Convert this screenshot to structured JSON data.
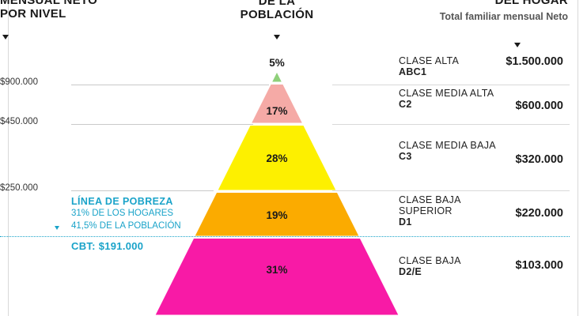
{
  "header": {
    "left_line1": "MENSUAL NETO",
    "left_line2": "POR NIVEL",
    "middle_line1": "DE LA",
    "middle_line2": "POBLACIÓN",
    "right_title": "DEL HOGAR",
    "right_subtitle": "Total familiar mensual Neto"
  },
  "poverty": {
    "title": "LÍNEA DE POBREZA",
    "households": "31% DE LOS HOGARES",
    "population": "41,5% DE LA POBLACIÓN",
    "cbt": "CBT: $191.000",
    "line_color": "#1aa3c9"
  },
  "chart_data": {
    "type": "pyramid",
    "y_tick_labels": [
      "$900.000",
      "$450.000",
      "$250.000"
    ],
    "segments": [
      {
        "pct_label": "5%",
        "value": 5,
        "class_name": "CLASE ALTA",
        "class_code": "ABC1",
        "income": "$1.500.000",
        "color": "#8fd07a"
      },
      {
        "pct_label": "17%",
        "value": 17,
        "class_name": "CLASE MEDIA ALTA",
        "class_code": "C2",
        "income": "$600.000",
        "color": "#f5aaa6"
      },
      {
        "pct_label": "28%",
        "value": 28,
        "class_name": "CLASE MEDIA BAJA",
        "class_code": "C3",
        "income": "$320.000",
        "color": "#fdf000"
      },
      {
        "pct_label": "19%",
        "value": 19,
        "class_name": "CLASE BAJA SUPERIOR",
        "class_code": "D1",
        "income": "$220.000",
        "color": "#fbab00"
      },
      {
        "pct_label": "31%",
        "value": 31,
        "class_name": "CLASE BAJA",
        "class_code": "D2/E",
        "income": "$103.000",
        "color": "#f81aa6"
      }
    ]
  }
}
